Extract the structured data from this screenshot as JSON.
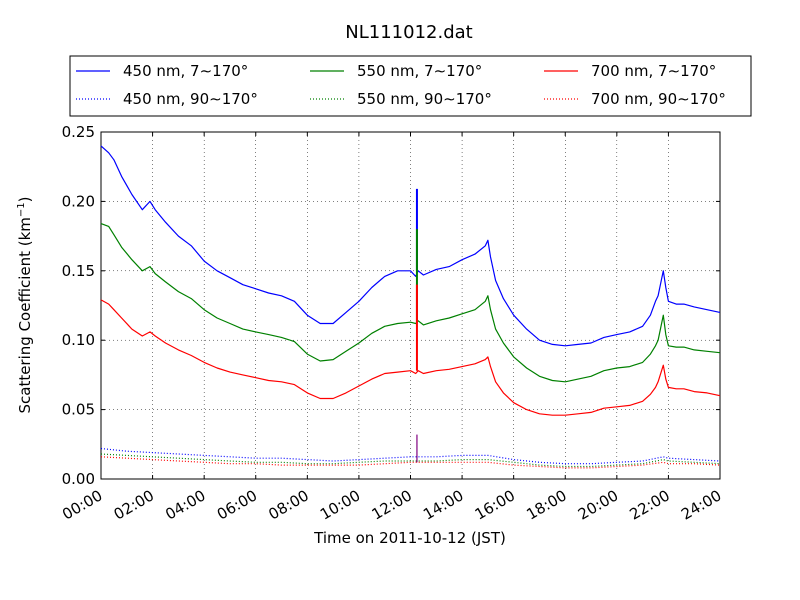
{
  "chart_data": {
    "type": "line",
    "title": "NL111012.dat",
    "xlabel": "Time on 2011-10-12 (JST)",
    "ylabel": "Scattering Coefficient (km",
    "ylabel_sup": "−1",
    "ylabel_close": ")",
    "xlim_hours": [
      0,
      24
    ],
    "ylim": [
      0,
      0.25
    ],
    "x_ticks": [
      {
        "hour": 0,
        "label": "00:00"
      },
      {
        "hour": 2,
        "label": "02:00"
      },
      {
        "hour": 4,
        "label": "04:00"
      },
      {
        "hour": 6,
        "label": "06:00"
      },
      {
        "hour": 8,
        "label": "08:00"
      },
      {
        "hour": 10,
        "label": "10:00"
      },
      {
        "hour": 12,
        "label": "12:00"
      },
      {
        "hour": 14,
        "label": "14:00"
      },
      {
        "hour": 16,
        "label": "16:00"
      },
      {
        "hour": 18,
        "label": "18:00"
      },
      {
        "hour": 20,
        "label": "20:00"
      },
      {
        "hour": 22,
        "label": "22:00"
      },
      {
        "hour": 24,
        "label": "24:00"
      }
    ],
    "y_ticks": [
      {
        "value": 0,
        "label": "0.00"
      },
      {
        "value": 0.05,
        "label": "0.05"
      },
      {
        "value": 0.1,
        "label": "0.10"
      },
      {
        "value": 0.15,
        "label": "0.15"
      },
      {
        "value": 0.2,
        "label": "0.20"
      },
      {
        "value": 0.25,
        "label": "0.25"
      }
    ],
    "grid": true,
    "legend_position": "top",
    "series": [
      {
        "name": "450 nm, 7∼170°",
        "color": "#0000ff",
        "style": "solid",
        "x": [
          0,
          0.3,
          0.5,
          0.8,
          1.2,
          1.6,
          1.9,
          2.1,
          2.5,
          3,
          3.5,
          4,
          4.5,
          5,
          5.5,
          6,
          6.5,
          7,
          7.5,
          8,
          8.5,
          9,
          9.5,
          10,
          10.5,
          11,
          11.5,
          12,
          12.2,
          12.3,
          12.5,
          13,
          13.5,
          14,
          14.5,
          14.9,
          15,
          15.1,
          15.3,
          15.6,
          16,
          16.5,
          17,
          17.5,
          18,
          18.5,
          19,
          19.5,
          20,
          20.5,
          21,
          21.3,
          21.5,
          21.6,
          21.8,
          21.9,
          22,
          22.3,
          22.6,
          23,
          23.5,
          24
        ],
        "y": [
          0.24,
          0.235,
          0.23,
          0.218,
          0.205,
          0.194,
          0.2,
          0.194,
          0.185,
          0.175,
          0.168,
          0.157,
          0.15,
          0.145,
          0.14,
          0.137,
          0.134,
          0.132,
          0.128,
          0.118,
          0.112,
          0.112,
          0.12,
          0.128,
          0.138,
          0.146,
          0.15,
          0.15,
          0.146,
          0.15,
          0.147,
          0.151,
          0.153,
          0.158,
          0.162,
          0.168,
          0.172,
          0.16,
          0.143,
          0.13,
          0.118,
          0.108,
          0.1,
          0.097,
          0.096,
          0.097,
          0.098,
          0.102,
          0.104,
          0.106,
          0.11,
          0.118,
          0.128,
          0.132,
          0.15,
          0.138,
          0.128,
          0.126,
          0.126,
          0.124,
          0.122,
          0.12
        ]
      },
      {
        "name": "550 nm, 7∼170°",
        "color": "#008000",
        "style": "solid",
        "x": [
          0,
          0.3,
          0.5,
          0.8,
          1.2,
          1.6,
          1.9,
          2.1,
          2.5,
          3,
          3.5,
          4,
          4.5,
          5,
          5.5,
          6,
          6.5,
          7,
          7.5,
          8,
          8.5,
          9,
          9.5,
          10,
          10.5,
          11,
          11.5,
          12,
          12.2,
          12.3,
          12.5,
          13,
          13.5,
          14,
          14.5,
          14.9,
          15,
          15.1,
          15.3,
          15.6,
          16,
          16.5,
          17,
          17.5,
          18,
          18.5,
          19,
          19.5,
          20,
          20.5,
          21,
          21.3,
          21.5,
          21.6,
          21.8,
          21.9,
          22,
          22.3,
          22.6,
          23,
          23.5,
          24
        ],
        "y": [
          0.184,
          0.182,
          0.176,
          0.167,
          0.158,
          0.15,
          0.153,
          0.148,
          0.142,
          0.135,
          0.13,
          0.122,
          0.116,
          0.112,
          0.108,
          0.106,
          0.104,
          0.102,
          0.099,
          0.09,
          0.085,
          0.086,
          0.092,
          0.098,
          0.105,
          0.11,
          0.112,
          0.113,
          0.112,
          0.114,
          0.111,
          0.114,
          0.116,
          0.119,
          0.122,
          0.128,
          0.132,
          0.122,
          0.108,
          0.098,
          0.088,
          0.08,
          0.074,
          0.071,
          0.07,
          0.072,
          0.074,
          0.078,
          0.08,
          0.081,
          0.084,
          0.09,
          0.096,
          0.1,
          0.118,
          0.104,
          0.096,
          0.095,
          0.095,
          0.093,
          0.092,
          0.091
        ]
      },
      {
        "name": "700 nm, 7∼170°",
        "color": "#ff0000",
        "style": "solid",
        "x": [
          0,
          0.3,
          0.5,
          0.8,
          1.2,
          1.6,
          1.9,
          2.1,
          2.5,
          3,
          3.5,
          4,
          4.5,
          5,
          5.5,
          6,
          6.5,
          7,
          7.5,
          8,
          8.5,
          9,
          9.5,
          10,
          10.5,
          11,
          11.5,
          12,
          12.2,
          12.3,
          12.5,
          13,
          13.5,
          14,
          14.5,
          14.9,
          15,
          15.1,
          15.3,
          15.6,
          16,
          16.5,
          17,
          17.5,
          18,
          18.5,
          19,
          19.5,
          20,
          20.5,
          21,
          21.3,
          21.5,
          21.6,
          21.8,
          21.9,
          22,
          22.3,
          22.6,
          23,
          23.5,
          24
        ],
        "y": [
          0.129,
          0.126,
          0.122,
          0.116,
          0.108,
          0.103,
          0.106,
          0.103,
          0.098,
          0.093,
          0.089,
          0.084,
          0.08,
          0.077,
          0.075,
          0.073,
          0.071,
          0.07,
          0.068,
          0.062,
          0.058,
          0.058,
          0.062,
          0.067,
          0.072,
          0.076,
          0.077,
          0.078,
          0.076,
          0.078,
          0.076,
          0.078,
          0.079,
          0.081,
          0.083,
          0.086,
          0.088,
          0.081,
          0.07,
          0.062,
          0.055,
          0.05,
          0.047,
          0.046,
          0.046,
          0.047,
          0.048,
          0.051,
          0.052,
          0.053,
          0.056,
          0.061,
          0.066,
          0.07,
          0.082,
          0.072,
          0.066,
          0.065,
          0.065,
          0.063,
          0.062,
          0.06
        ]
      },
      {
        "name": "450 nm, 90∼170°",
        "color": "#0000ff",
        "style": "dotted",
        "x": [
          0,
          1,
          2,
          3,
          4,
          5,
          6,
          7,
          8,
          9,
          10,
          11,
          12,
          13,
          14,
          15,
          16,
          17,
          18,
          19,
          20,
          21,
          21.8,
          22,
          23,
          24
        ],
        "y": [
          0.022,
          0.02,
          0.019,
          0.018,
          0.017,
          0.016,
          0.015,
          0.015,
          0.014,
          0.013,
          0.014,
          0.015,
          0.016,
          0.016,
          0.017,
          0.017,
          0.014,
          0.012,
          0.011,
          0.011,
          0.012,
          0.013,
          0.016,
          0.015,
          0.014,
          0.013
        ]
      },
      {
        "name": "550 nm, 90∼170°",
        "color": "#008000",
        "style": "dotted",
        "x": [
          0,
          1,
          2,
          3,
          4,
          5,
          6,
          7,
          8,
          9,
          10,
          11,
          12,
          13,
          14,
          15,
          16,
          17,
          18,
          19,
          20,
          21,
          21.8,
          22,
          23,
          24
        ],
        "y": [
          0.018,
          0.017,
          0.016,
          0.015,
          0.014,
          0.013,
          0.012,
          0.012,
          0.011,
          0.011,
          0.012,
          0.013,
          0.013,
          0.013,
          0.014,
          0.014,
          0.012,
          0.01,
          0.009,
          0.009,
          0.01,
          0.011,
          0.014,
          0.013,
          0.012,
          0.011
        ]
      },
      {
        "name": "700 nm, 90∼170°",
        "color": "#ff0000",
        "style": "dotted",
        "x": [
          0,
          1,
          2,
          3,
          4,
          5,
          6,
          7,
          8,
          9,
          10,
          11,
          12,
          13,
          14,
          15,
          16,
          17,
          18,
          19,
          20,
          21,
          21.8,
          22,
          23,
          24
        ],
        "y": [
          0.016,
          0.015,
          0.014,
          0.013,
          0.012,
          0.011,
          0.011,
          0.01,
          0.01,
          0.01,
          0.01,
          0.011,
          0.012,
          0.012,
          0.012,
          0.012,
          0.01,
          0.009,
          0.008,
          0.008,
          0.009,
          0.01,
          0.012,
          0.011,
          0.011,
          0.01
        ]
      }
    ],
    "spike": {
      "hour": 12.25,
      "blue": [
        0.15,
        0.209
      ],
      "green": [
        0.113,
        0.18
      ],
      "red": [
        0.078,
        0.14
      ],
      "dotted_top": 0.032
    }
  }
}
